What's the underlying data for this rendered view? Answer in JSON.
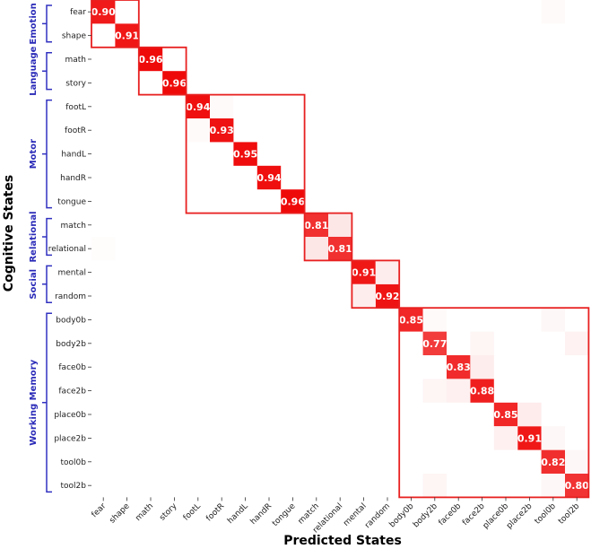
{
  "chart_data": {
    "type": "heatmap",
    "xlabel": "Predicted States",
    "ylabel": "Cognitive States",
    "states": [
      "fear",
      "shape",
      "math",
      "story",
      "footL",
      "footR",
      "handL",
      "handR",
      "tongue",
      "match",
      "relational",
      "mental",
      "random",
      "body0b",
      "body2b",
      "face0b",
      "face2b",
      "place0b",
      "place2b",
      "tool0b",
      "tool2b"
    ],
    "diagonal_values": [
      0.9,
      0.91,
      0.96,
      0.96,
      0.94,
      0.93,
      0.95,
      0.94,
      0.96,
      0.81,
      0.81,
      0.91,
      0.92,
      0.85,
      0.77,
      0.83,
      0.88,
      0.85,
      0.91,
      0.82,
      0.8
    ],
    "diagonal_labels": [
      "0.90",
      "0.91",
      "0.96",
      "0.96",
      "0.94",
      "0.93",
      "0.95",
      "0.94",
      "0.96",
      "0.81",
      "0.81",
      "0.91",
      "0.92",
      "0.85",
      "0.77",
      "0.83",
      "0.88",
      "0.85",
      "0.91",
      "0.82",
      "0.80"
    ],
    "off_diagonal": [
      [
        0,
        19,
        0.02
      ],
      [
        9,
        10,
        0.1
      ],
      [
        10,
        9,
        0.1
      ],
      [
        11,
        12,
        0.07
      ],
      [
        12,
        11,
        0.07
      ],
      [
        13,
        19,
        0.03
      ],
      [
        14,
        20,
        0.05
      ],
      [
        14,
        16,
        0.04
      ],
      [
        15,
        16,
        0.07
      ],
      [
        16,
        15,
        0.06
      ],
      [
        16,
        14,
        0.04
      ],
      [
        17,
        18,
        0.08
      ],
      [
        18,
        17,
        0.06
      ],
      [
        18,
        19,
        0.03
      ],
      [
        20,
        14,
        0.04
      ],
      [
        4,
        5,
        0.02
      ],
      [
        5,
        4,
        0.02
      ],
      [
        10,
        0,
        0.01
      ],
      [
        13,
        14,
        0.02
      ],
      [
        19,
        20,
        0.03
      ],
      [
        20,
        19,
        0.03
      ]
    ],
    "groups": [
      {
        "name": "Emotion",
        "start": 0,
        "end": 1
      },
      {
        "name": "Language",
        "start": 2,
        "end": 3
      },
      {
        "name": "Motor",
        "start": 4,
        "end": 8
      },
      {
        "name": "Relational",
        "start": 9,
        "end": 10
      },
      {
        "name": "Social",
        "start": 11,
        "end": 12
      },
      {
        "name": "Working Memory",
        "start": 13,
        "end": 20
      }
    ],
    "colors": {
      "cell_max": "#ee0000",
      "box": "#e82020",
      "group_text": "#2a2ab8",
      "bracket": "#3030c0"
    }
  }
}
